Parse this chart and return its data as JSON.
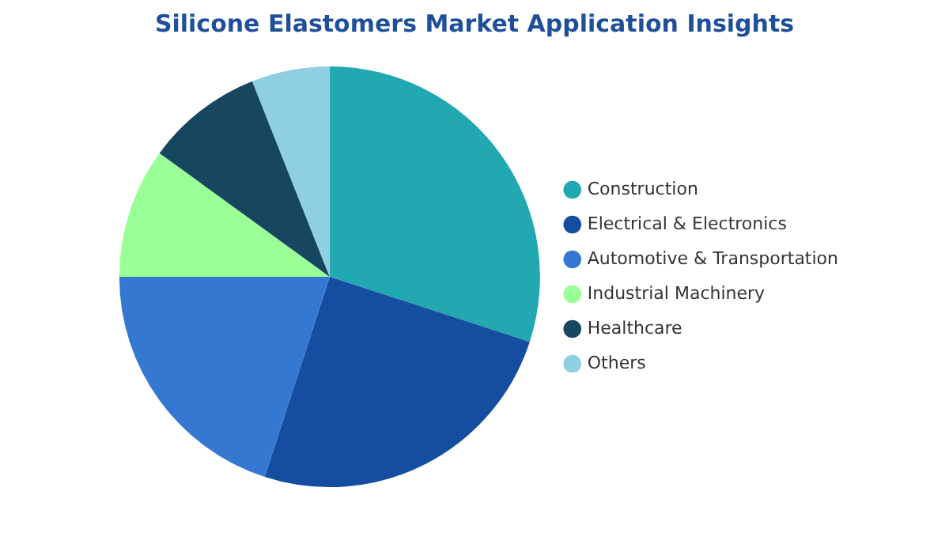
{
  "chart_data": {
    "type": "pie",
    "title": "Silicone Elastomers Market Application Insights",
    "categories": [
      "Construction",
      "Electrical & Electronics",
      "Automotive & Transportation",
      "Industrial Machinery",
      "Healthcare",
      "Others"
    ],
    "values": [
      30,
      25,
      20,
      10,
      9,
      6
    ],
    "colors": [
      "#21a8b0",
      "#154ea0",
      "#3578d1",
      "#9aff96",
      "#17465f",
      "#8ecfe0"
    ],
    "legend": "right"
  }
}
